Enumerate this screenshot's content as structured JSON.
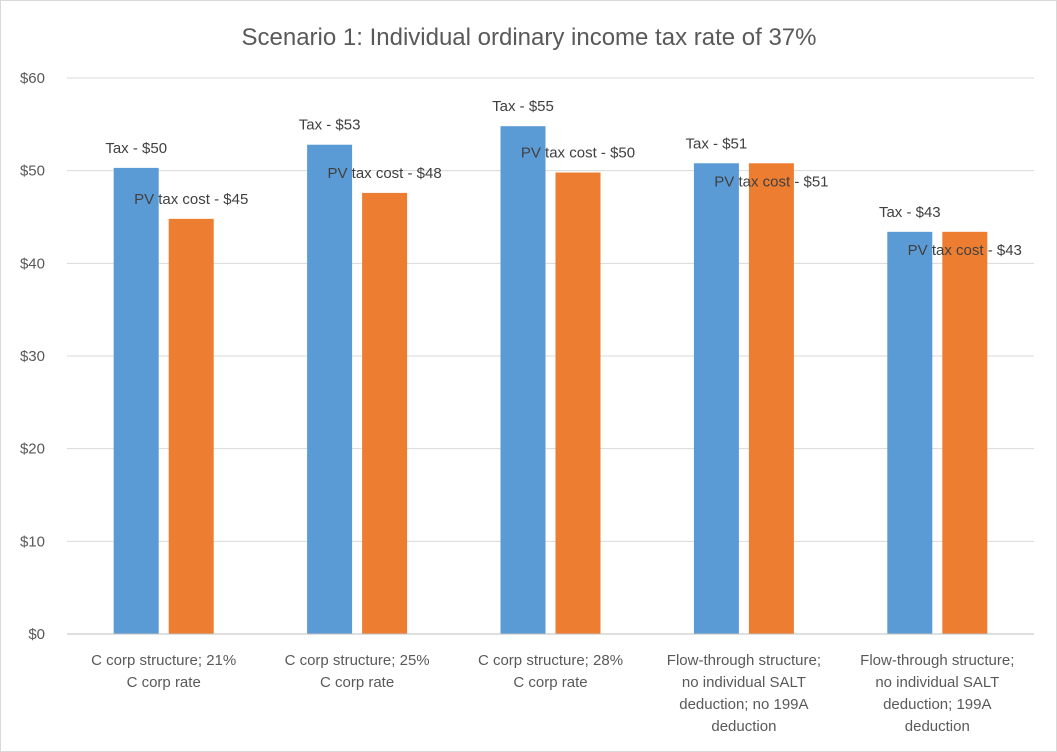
{
  "chart_data": {
    "type": "bar",
    "title": "Scenario 1: Individual ordinary income tax rate of 37%",
    "categories": [
      [
        "C corp structure; 21%",
        "C corp rate"
      ],
      [
        "C corp structure; 25%",
        "C corp rate"
      ],
      [
        "C corp structure; 28%",
        "C corp rate"
      ],
      [
        "Flow-through structure;",
        "no individual SALT",
        "deduction; no 199A",
        "deduction"
      ],
      [
        "Flow-through structure;",
        "no individual SALT",
        "deduction; 199A",
        "deduction"
      ]
    ],
    "series": [
      {
        "name": "Tax",
        "color": "#5b9bd5",
        "values": [
          50.3,
          52.8,
          54.8,
          50.8,
          43.4
        ],
        "labels": [
          "Tax - $50",
          "Tax - $53",
          "Tax - $55",
          "Tax - $51",
          "Tax - $43"
        ]
      },
      {
        "name": "PV tax cost",
        "color": "#ed7d31",
        "values": [
          44.8,
          47.6,
          49.8,
          50.8,
          43.4
        ],
        "labels": [
          "PV tax cost - $45",
          "PV tax cost - $48",
          "PV tax cost - $50",
          "PV tax cost - $51",
          "PV tax cost - $43"
        ]
      }
    ],
    "ylim": [
      0,
      60
    ],
    "yticks": [
      0,
      10,
      20,
      30,
      40,
      50,
      60
    ],
    "ytick_labels": [
      "$0",
      "$10",
      "$20",
      "$30",
      "$40",
      "$50",
      "$60"
    ],
    "grid": true,
    "gridline_color": "#d9d9d9",
    "xlabel": "",
    "ylabel": ""
  }
}
